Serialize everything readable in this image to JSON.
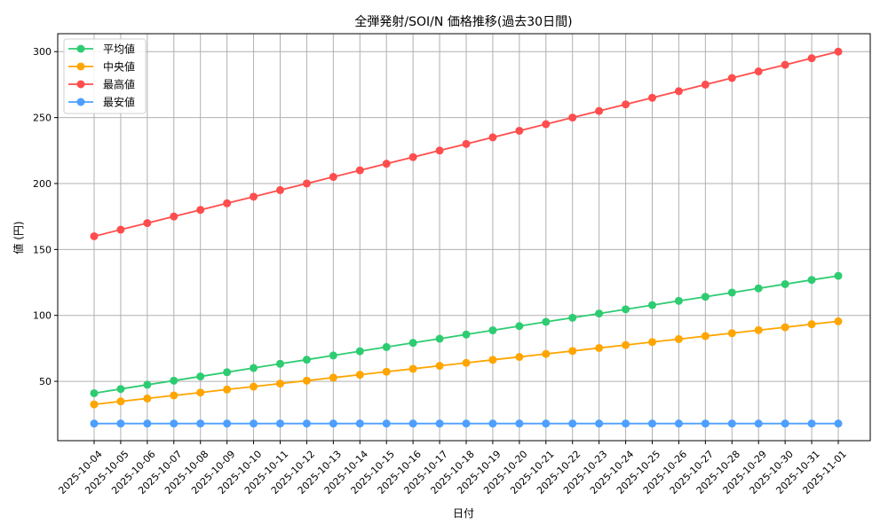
{
  "chart_data": {
    "type": "line",
    "title": "全弾発射/SOI/N 価格推移(過去30日間)",
    "xlabel": "日付",
    "ylabel": "値 (円)",
    "ylim": [
      5,
      313.6
    ],
    "yticks": [
      50,
      100,
      150,
      200,
      250,
      300
    ],
    "grid": true,
    "legend_position": "top-left",
    "categories": [
      "2025-10-04",
      "2025-10-05",
      "2025-10-06",
      "2025-10-07",
      "2025-10-08",
      "2025-10-09",
      "2025-10-10",
      "2025-10-11",
      "2025-10-12",
      "2025-10-13",
      "2025-10-14",
      "2025-10-15",
      "2025-10-16",
      "2025-10-17",
      "2025-10-18",
      "2025-10-19",
      "2025-10-20",
      "2025-10-21",
      "2025-10-22",
      "2025-10-23",
      "2025-10-24",
      "2025-10-25",
      "2025-10-26",
      "2025-10-27",
      "2025-10-28",
      "2025-10-29",
      "2025-10-30",
      "2025-10-31",
      "2025-11-01"
    ],
    "series": [
      {
        "name": "平均値",
        "color": "#2ecc71",
        "values": [
          41.0,
          44.2,
          47.4,
          50.5,
          53.7,
          56.9,
          60.1,
          63.3,
          66.4,
          69.6,
          72.8,
          76.0,
          79.2,
          82.3,
          85.5,
          88.7,
          91.9,
          95.1,
          98.2,
          101.4,
          104.6,
          107.8,
          111.0,
          114.1,
          117.3,
          120.5,
          123.7,
          126.9,
          130.0
        ]
      },
      {
        "name": "中央値",
        "color": "#ffa500",
        "values": [
          32.5,
          34.8,
          37.0,
          39.3,
          41.5,
          43.8,
          46.0,
          48.3,
          50.5,
          52.8,
          55.0,
          57.3,
          59.5,
          61.8,
          64.0,
          66.3,
          68.5,
          70.8,
          73.0,
          75.3,
          77.5,
          79.8,
          82.0,
          84.3,
          86.5,
          88.8,
          91.0,
          93.3,
          95.5
        ]
      },
      {
        "name": "最高値",
        "color": "#ff4d4d",
        "values": [
          160,
          165,
          170,
          175,
          180,
          185,
          190,
          195,
          200,
          205,
          210,
          215,
          220,
          225,
          230,
          235,
          240,
          245,
          250,
          255,
          260,
          265,
          270,
          275,
          280,
          285,
          290,
          295,
          300
        ]
      },
      {
        "name": "最安値",
        "color": "#4d9fff",
        "values": [
          18,
          18,
          18,
          18,
          18,
          18,
          18,
          18,
          18,
          18,
          18,
          18,
          18,
          18,
          18,
          18,
          18,
          18,
          18,
          18,
          18,
          18,
          18,
          18,
          18,
          18,
          18,
          18,
          18
        ]
      }
    ]
  }
}
